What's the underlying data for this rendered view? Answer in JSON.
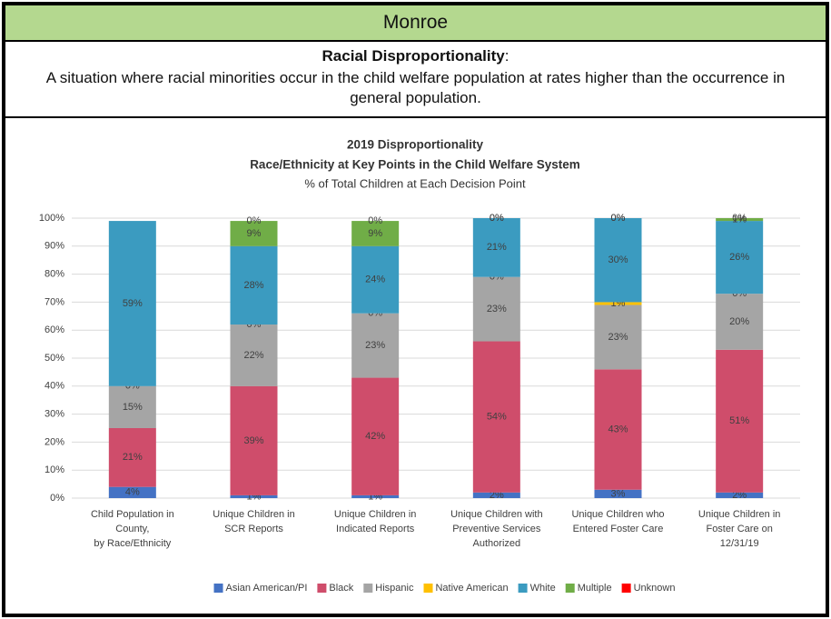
{
  "header": {
    "title": "Monroe",
    "term": "Racial Disproportionality",
    "term_suffix": ":",
    "definition": "A situation where racial minorities occur in the child welfare population at rates higher than the occurrence in general population."
  },
  "chart_data": {
    "type": "stacked_bar",
    "title": "2019 Disproportionality",
    "subtitle": "Race/Ethnicity at Key Points in the Child Welfare System",
    "subtitle2": "% of Total Children at Each Decision Point",
    "categories": [
      "Child Population in\nCounty,\nby Race/Ethnicity",
      "Unique Children in\nSCR Reports",
      "Unique Children in\nIndicated Reports",
      "Unique Children with\nPreventive Services\nAuthorized",
      "Unique Children who\nEntered Foster Care",
      "Unique Children in\nFoster Care on\n12/31/19"
    ],
    "series": [
      {
        "name": "Asian American/PI",
        "color": "#4472c4",
        "values": [
          4,
          1,
          1,
          2,
          3,
          2
        ],
        "value_labels": [
          "4%",
          "1%",
          "1%",
          "2%",
          "3%",
          "2%"
        ]
      },
      {
        "name": "Black",
        "color": "#cf4d6b",
        "values": [
          21,
          39,
          42,
          54,
          43,
          51
        ],
        "value_labels": [
          "21%",
          "39%",
          "42%",
          "54%",
          "43%",
          "51%"
        ]
      },
      {
        "name": "Hispanic",
        "color": "#a5a5a5",
        "values": [
          15,
          22,
          23,
          23,
          23,
          20
        ],
        "value_labels": [
          "15%",
          "22%",
          "23%",
          "23%",
          "23%",
          "20%"
        ]
      },
      {
        "name": "Native American",
        "color": "#ffc000",
        "values": [
          0,
          0,
          0,
          0,
          1,
          0
        ],
        "value_labels": [
          "0%",
          "0%",
          "0%",
          "0%",
          "1%",
          "0%"
        ]
      },
      {
        "name": "White",
        "color": "#3b9bc0",
        "values": [
          59,
          28,
          24,
          21,
          30,
          26
        ],
        "value_labels": [
          "59%",
          "28%",
          "24%",
          "21%",
          "30%",
          "26%"
        ]
      },
      {
        "name": "Multiple",
        "color": "#70ad47",
        "values": [
          null,
          9,
          9,
          0,
          0,
          1
        ],
        "value_labels": [
          null,
          "9%",
          "9%",
          "0%",
          "0%",
          "1%"
        ]
      },
      {
        "name": "Unknown",
        "color": "#ff0000",
        "values": [
          null,
          0,
          0,
          0,
          0,
          0
        ],
        "value_labels": [
          null,
          "0%",
          "0%",
          "0%",
          "0%",
          "0%"
        ]
      }
    ],
    "ylim": [
      0,
      100
    ],
    "yticks": [
      {
        "value": 0,
        "label": "0%"
      },
      {
        "value": 10,
        "label": "10%"
      },
      {
        "value": 20,
        "label": "20%"
      },
      {
        "value": 30,
        "label": "30%"
      },
      {
        "value": 40,
        "label": "40%"
      },
      {
        "value": 50,
        "label": "50%"
      },
      {
        "value": 60,
        "label": "60%"
      },
      {
        "value": 70,
        "label": "70%"
      },
      {
        "value": 80,
        "label": "80%"
      },
      {
        "value": 90,
        "label": "90%"
      },
      {
        "value": 100,
        "label": "100%"
      }
    ],
    "grid": true,
    "legend": "bottom"
  }
}
